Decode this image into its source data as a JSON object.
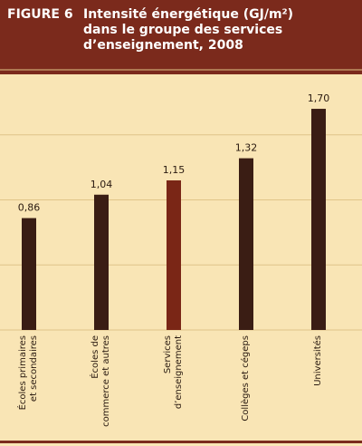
{
  "chart_data": {
    "type": "bar",
    "figure_label": "FIGURE 6",
    "title": "Intensité énergétique (GJ/m²)\ndans le groupe des services\nd’enseignement, 2008",
    "categories": [
      "Écoles primaires\net secondaires",
      "Écoles de\ncommerce et autres",
      "Services\nd’enseignement",
      "Collèges et cégeps",
      "Universités"
    ],
    "values": [
      0.86,
      1.04,
      1.15,
      1.32,
      1.7
    ],
    "value_labels": [
      "0,86",
      "1,04",
      "1,15",
      "1,32",
      "1,70"
    ],
    "colors": [
      "#3a1d14",
      "#3a1d14",
      "#7a2616",
      "#3a1d14",
      "#3a1d14"
    ],
    "ylim": [
      0,
      2
    ],
    "yticks": [
      0,
      0.5,
      1,
      1.5,
      2
    ],
    "grid": true
  }
}
